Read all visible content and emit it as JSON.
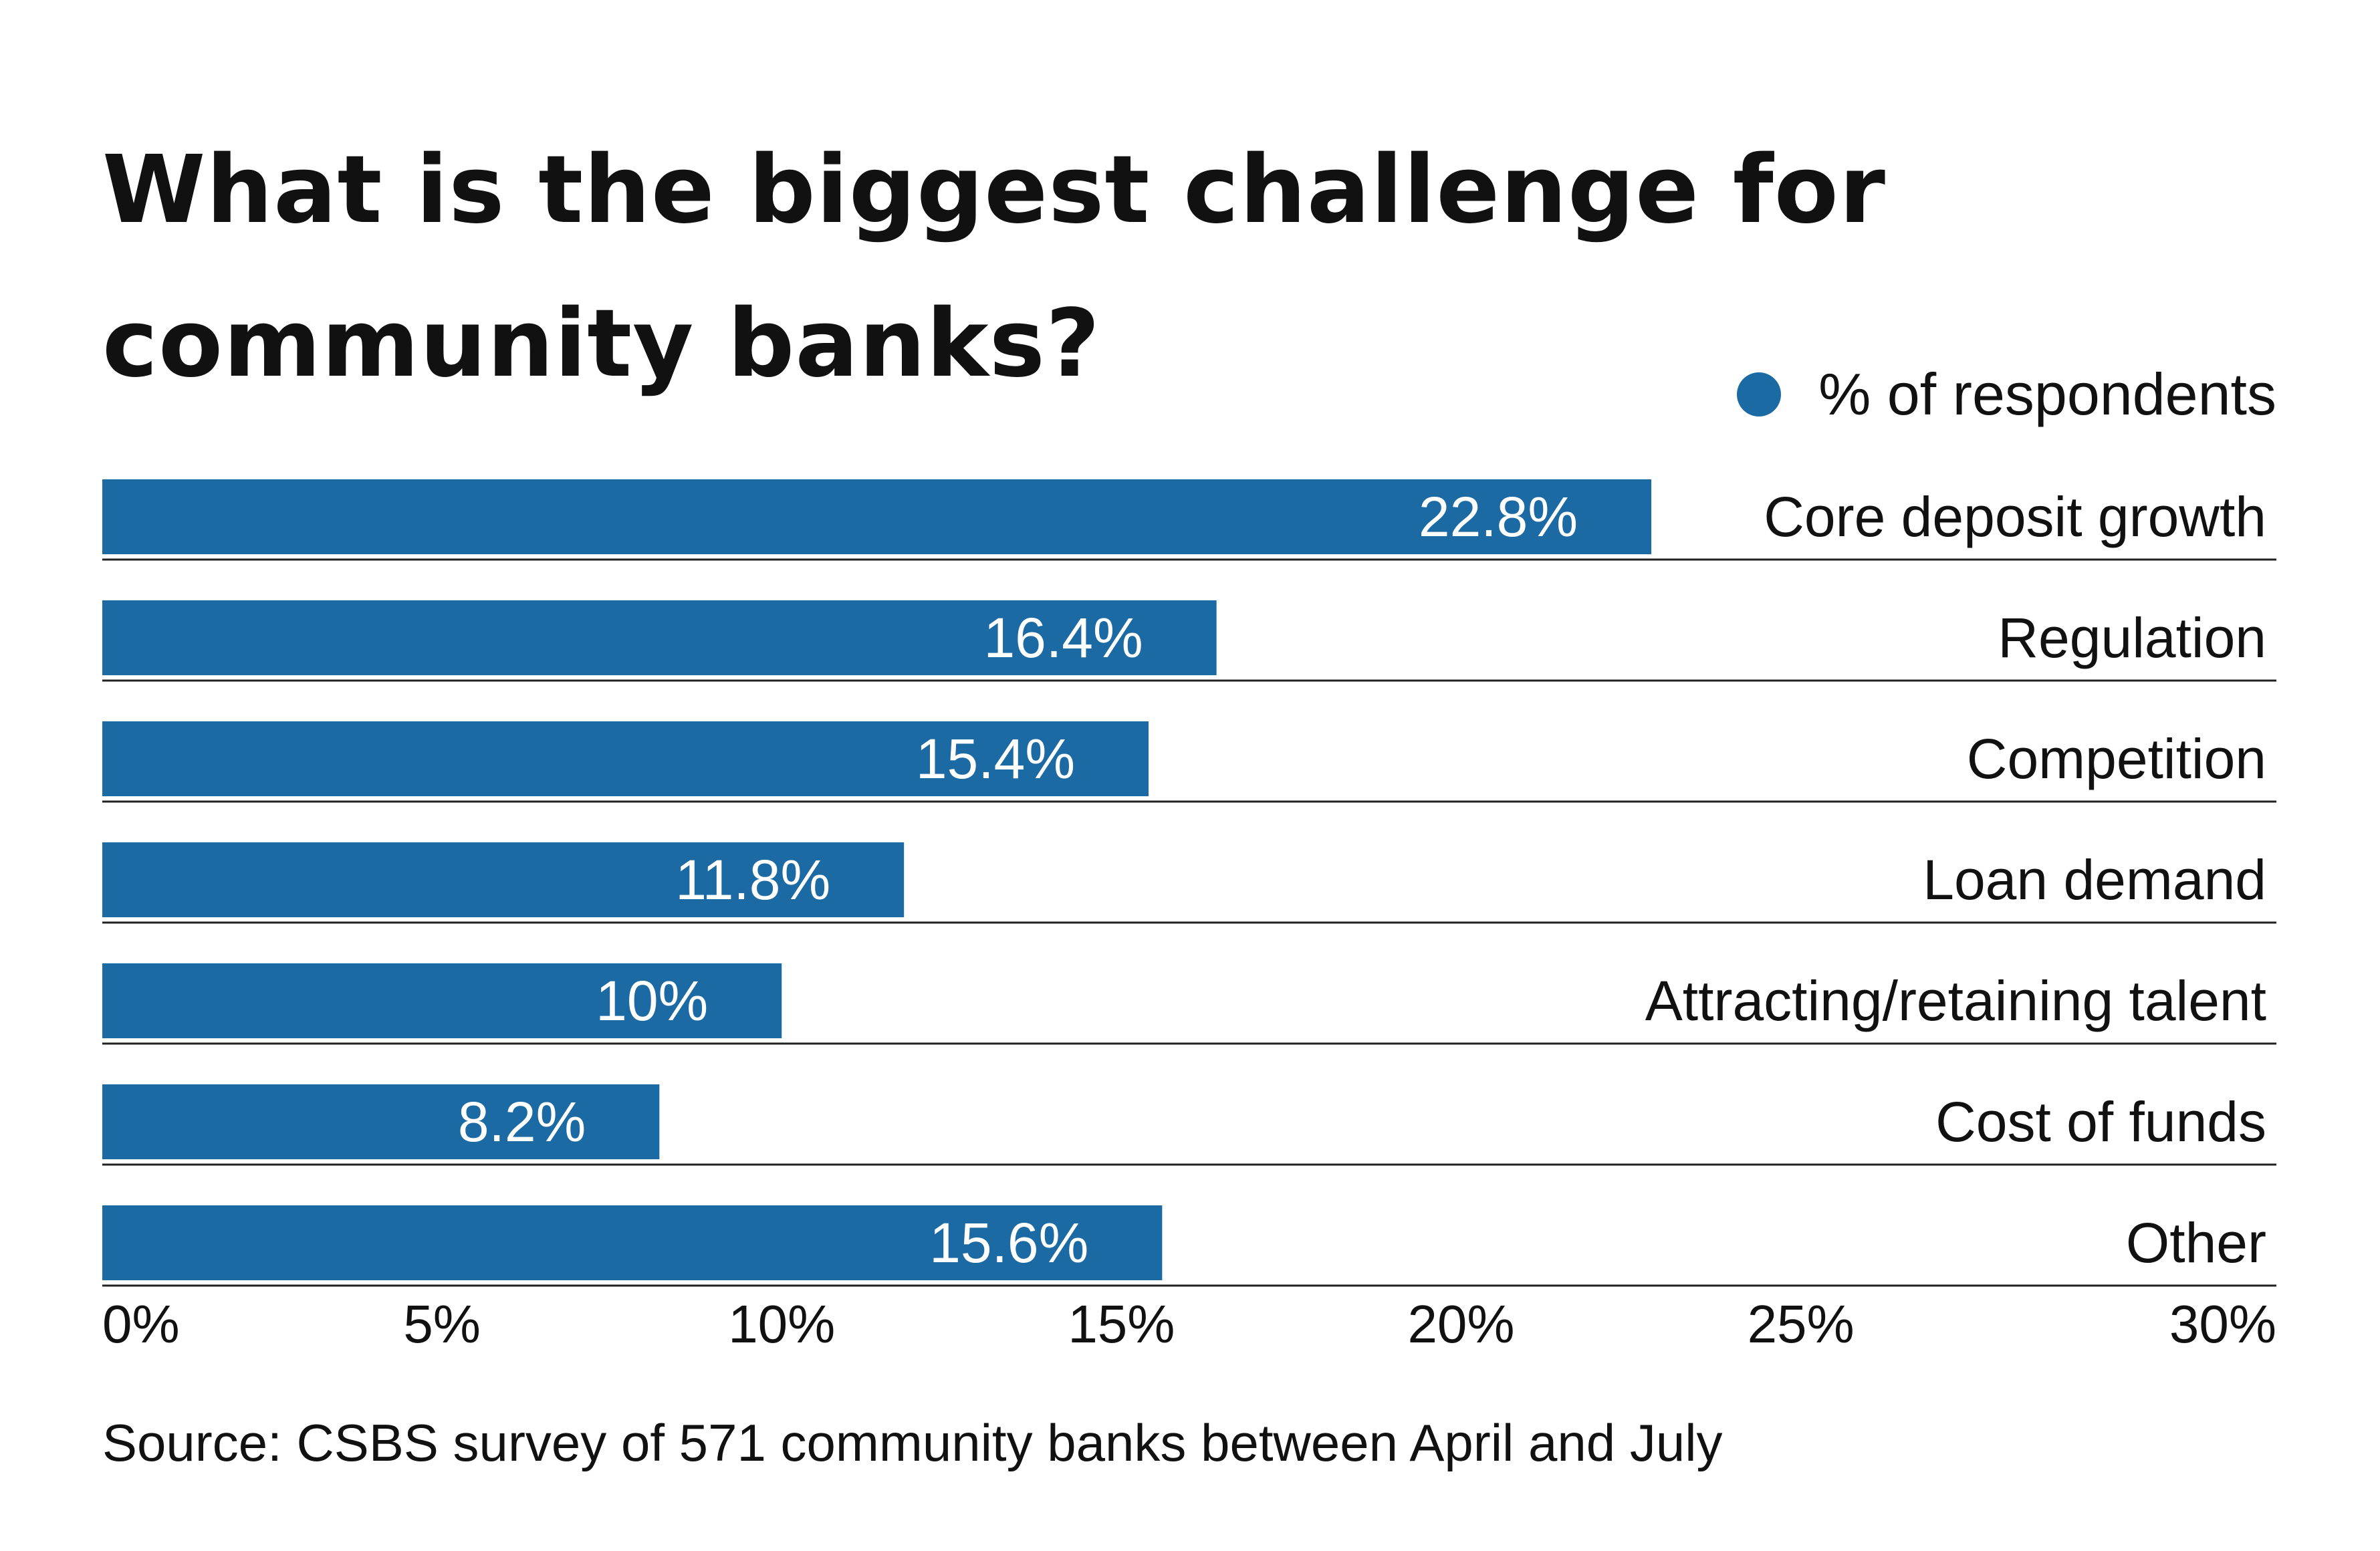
{
  "chart_data": {
    "type": "bar",
    "orientation": "horizontal",
    "title": "What is the biggest challenge for community banks?",
    "legend": {
      "label": "% of respondents",
      "placement": "top-right"
    },
    "categories": [
      "Core deposit growth",
      "Regulation",
      "Competition",
      "Loan demand",
      "Attracting/retaining talent",
      "Cost of funds",
      "Other"
    ],
    "values": [
      22.8,
      16.4,
      15.4,
      11.8,
      10,
      8.2,
      15.6
    ],
    "data_labels": [
      "22.8%",
      "16.4%",
      "15.4%",
      "11.8%",
      "10%",
      "8.2%",
      "15.6%"
    ],
    "xlim": [
      0,
      32
    ],
    "x_ticks": [
      0,
      5,
      10,
      15,
      20,
      25,
      30
    ],
    "x_tick_labels": [
      "0%",
      "5%",
      "10%",
      "15%",
      "20%",
      "25%",
      "30%"
    ],
    "grid": false,
    "colors": {
      "bar": "#1c6aa3",
      "bar_label": "#ffffff",
      "separator": "#222222",
      "text": "#111111"
    }
  },
  "source": "Source: CSBS survey of 571 community banks between April and July"
}
